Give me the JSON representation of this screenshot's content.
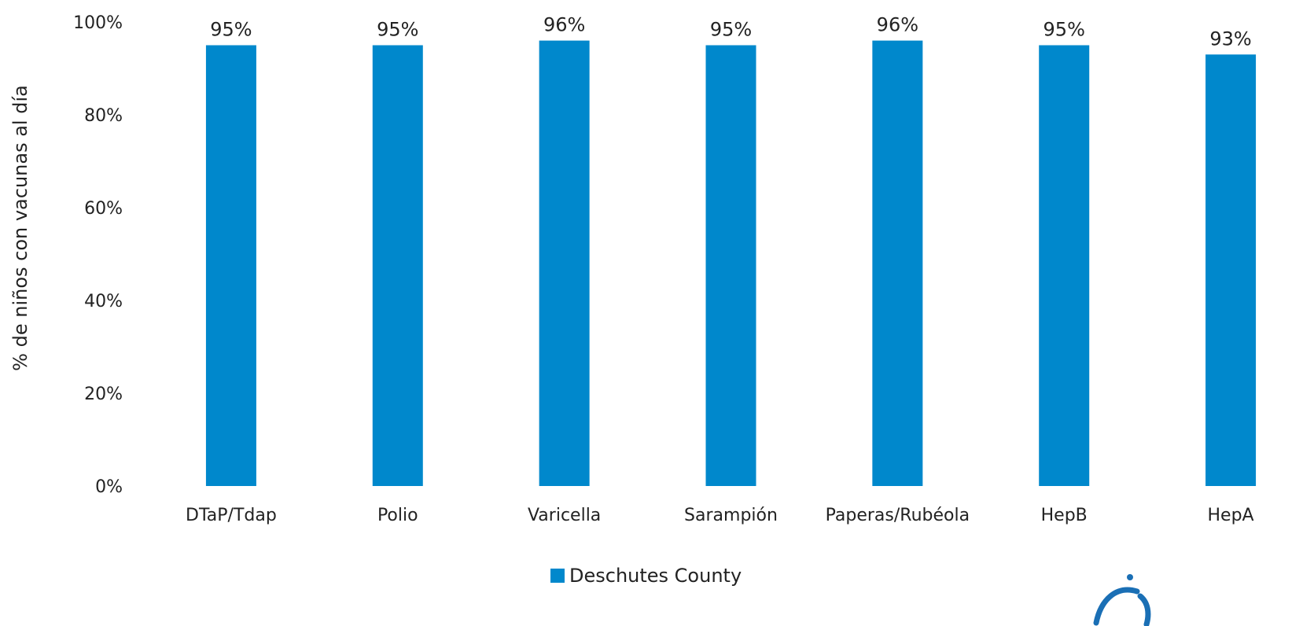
{
  "chart_data": {
    "type": "bar",
    "categories": [
      "DTaP/Tdap",
      "Polio",
      "Varicella",
      "Sarampión",
      "Paperas/Rubéola",
      "HepB",
      "HepA"
    ],
    "series": [
      {
        "name": "Deschutes County",
        "values": [
          95,
          95,
          96,
          95,
          96,
          95,
          93
        ],
        "color": "#0088cc"
      }
    ],
    "data_labels": [
      "95%",
      "95%",
      "96%",
      "95%",
      "96%",
      "95%",
      "93%"
    ],
    "ylabel": "% de niños con vacunas al día",
    "xlabel": "",
    "ylim": [
      0,
      100
    ],
    "yticks": [
      0,
      20,
      40,
      60,
      80,
      100
    ],
    "ytick_labels": [
      "0%",
      "20%",
      "40%",
      "60%",
      "80%",
      "100%"
    ],
    "grid": false,
    "legend_position": "bottom-center"
  },
  "logo": {
    "name": "logo-mark",
    "color": "#1a6fb5"
  }
}
